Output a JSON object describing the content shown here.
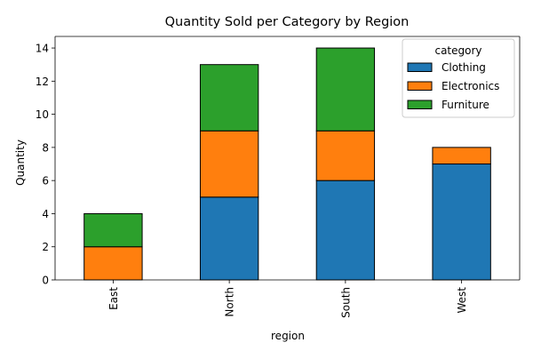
{
  "chart_data": {
    "type": "bar",
    "stacked": true,
    "title": "Quantity Sold per Category by Region",
    "xlabel": "region",
    "ylabel": "Quantity",
    "categories": [
      "East",
      "North",
      "South",
      "West"
    ],
    "series": [
      {
        "name": "Clothing",
        "values": [
          0,
          5,
          6,
          7
        ],
        "color": "#1f77b4"
      },
      {
        "name": "Electronics",
        "values": [
          2,
          4,
          3,
          1
        ],
        "color": "#ff7f0e"
      },
      {
        "name": "Furniture",
        "values": [
          2,
          4,
          5,
          0
        ],
        "color": "#2ca02c"
      }
    ],
    "ylim": [
      0,
      14.7
    ],
    "yticks": [
      0,
      2,
      4,
      6,
      8,
      10,
      12,
      14
    ],
    "legend": {
      "title": "category",
      "placement": "top-right"
    },
    "grid": false
  }
}
